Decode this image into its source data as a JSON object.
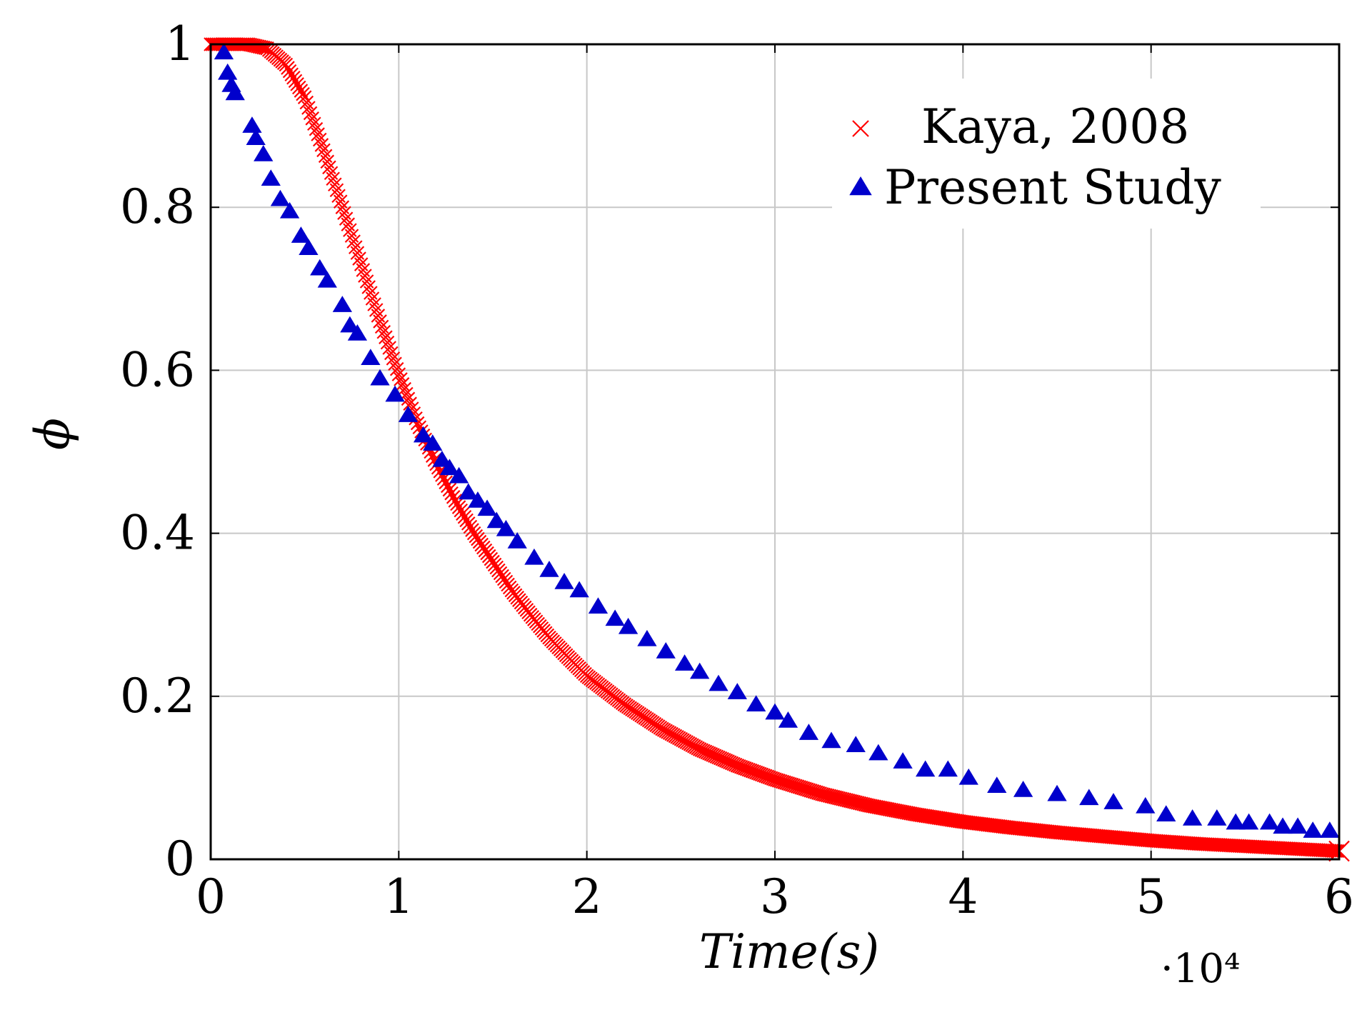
{
  "chart_data": {
    "type": "scatter",
    "title": "",
    "xlabel": "Time(s)",
    "ylabel": "ϕ",
    "x_multiplier": "·10⁴",
    "xlim": [
      0,
      6
    ],
    "ylim": [
      0,
      1
    ],
    "grid": true,
    "legend_position": "top-right",
    "x_ticks": [
      "0",
      "1",
      "2",
      "3",
      "4",
      "5",
      "6"
    ],
    "y_ticks": [
      "0",
      "0.2",
      "0.4",
      "0.6",
      "0.8",
      "1"
    ],
    "series": [
      {
        "name": "Kaya, 2008",
        "marker": "cross",
        "color": "#ff0000",
        "curve": "dense line of cross markers (sampled)",
        "x": [
          0,
          0.1,
          0.2,
          0.3,
          0.4,
          0.5,
          0.6,
          0.7,
          0.8,
          0.9,
          1.0,
          1.1,
          1.2,
          1.3,
          1.4,
          1.5,
          1.6,
          1.7,
          1.8,
          1.9,
          2.0,
          2.2,
          2.4,
          2.6,
          2.8,
          3.0,
          3.25,
          3.5,
          3.75,
          4.0,
          4.25,
          4.5,
          4.75,
          5.0,
          5.25,
          5.5,
          5.75,
          6.0
        ],
        "y": [
          1.0,
          1.0,
          1.0,
          0.995,
          0.975,
          0.935,
          0.87,
          0.8,
          0.73,
          0.66,
          0.595,
          0.535,
          0.485,
          0.44,
          0.4,
          0.365,
          0.33,
          0.3,
          0.272,
          0.248,
          0.225,
          0.19,
          0.16,
          0.135,
          0.115,
          0.098,
          0.08,
          0.066,
          0.055,
          0.046,
          0.039,
          0.033,
          0.028,
          0.023,
          0.019,
          0.016,
          0.013,
          0.01
        ]
      },
      {
        "name": "Present Study",
        "marker": "triangle",
        "color": "#0000cc",
        "x": [
          0.07,
          0.09,
          0.11,
          0.13,
          0.22,
          0.24,
          0.28,
          0.32,
          0.37,
          0.42,
          0.48,
          0.52,
          0.58,
          0.62,
          0.7,
          0.74,
          0.78,
          0.85,
          0.9,
          0.98,
          1.05,
          1.13,
          1.18,
          1.23,
          1.27,
          1.32,
          1.37,
          1.42,
          1.47,
          1.52,
          1.57,
          1.63,
          1.72,
          1.8,
          1.88,
          1.96,
          2.06,
          2.15,
          2.22,
          2.32,
          2.42,
          2.52,
          2.6,
          2.7,
          2.8,
          2.9,
          3.0,
          3.07,
          3.18,
          3.3,
          3.43,
          3.55,
          3.68,
          3.8,
          3.92,
          4.03,
          4.18,
          4.32,
          4.5,
          4.67,
          4.8,
          4.97,
          5.08,
          5.22,
          5.35,
          5.45,
          5.52,
          5.63,
          5.7,
          5.78,
          5.86,
          5.95
        ],
        "y": [
          0.99,
          0.965,
          0.95,
          0.94,
          0.9,
          0.885,
          0.865,
          0.835,
          0.81,
          0.795,
          0.765,
          0.75,
          0.725,
          0.71,
          0.68,
          0.655,
          0.645,
          0.615,
          0.59,
          0.57,
          0.545,
          0.52,
          0.51,
          0.49,
          0.48,
          0.47,
          0.45,
          0.44,
          0.43,
          0.415,
          0.405,
          0.39,
          0.37,
          0.355,
          0.34,
          0.33,
          0.31,
          0.295,
          0.285,
          0.27,
          0.255,
          0.24,
          0.23,
          0.215,
          0.205,
          0.19,
          0.18,
          0.17,
          0.155,
          0.145,
          0.14,
          0.13,
          0.12,
          0.11,
          0.11,
          0.1,
          0.09,
          0.085,
          0.08,
          0.075,
          0.07,
          0.065,
          0.055,
          0.05,
          0.05,
          0.045,
          0.045,
          0.045,
          0.04,
          0.04,
          0.035,
          0.035
        ]
      }
    ]
  }
}
